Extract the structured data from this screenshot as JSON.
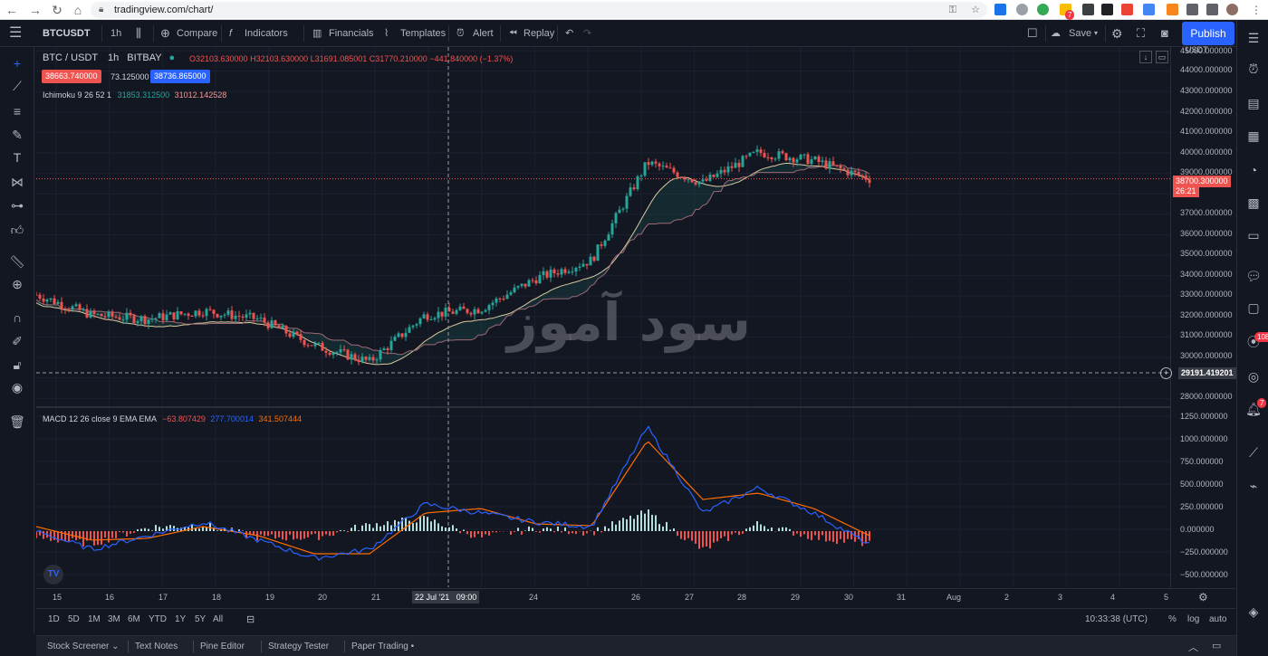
{
  "browser": {
    "url": "tradingview.com/chart/"
  },
  "toolbar": {
    "symbol": "BTCUSDT",
    "interval": "1h",
    "compare": "Compare",
    "indicators": "Indicators",
    "financials": "Financials",
    "templates": "Templates",
    "alert": "Alert",
    "replay": "Replay",
    "save": "Save",
    "publish": "Publish"
  },
  "legend": {
    "title": "BTC / USDT",
    "interval": "1h",
    "exchange": "BITBAY",
    "open": "O32103.630000",
    "high": "H32103.630000",
    "low": "L31691.085001",
    "close": "C31770.210000",
    "change": "−441.840000 (−1.37%)",
    "bid": "38663.740000",
    "spread": "73.125000",
    "ask": "38736.865000",
    "ichimoku_label": "Ichimoku 9 26 52 1",
    "ichimoku_v1": "31853.312500",
    "ichimoku_v2": "31012.142528",
    "macd_label": "MACD 12 26 close 9 EMA EMA",
    "macd_hist": "−63.807429",
    "macd_line": "277.700014",
    "macd_signal": "341.507444"
  },
  "price_axis": {
    "currency": "USDT",
    "labels": [
      "45000.000000",
      "44000.000000",
      "43000.000000",
      "42000.000000",
      "41000.000000",
      "40000.000000",
      "39000.000000",
      "37000.000000",
      "36000.000000",
      "35000.000000",
      "34000.000000",
      "33000.000000",
      "32000.000000",
      "31000.000000",
      "30000.000000",
      "28000.000000"
    ],
    "current_price": "38700.300000",
    "countdown": "26:21",
    "crosshair_price": "29191.419201",
    "macd_labels": [
      "1250.000000",
      "1000.000000",
      "750.000000",
      "500.000000",
      "250.000000",
      "0.000000",
      "−250.000000",
      "−500.000000"
    ]
  },
  "time_axis": {
    "labels": [
      "15",
      "16",
      "17",
      "18",
      "19",
      "20",
      "21",
      "24",
      "26",
      "27",
      "28",
      "29",
      "30",
      "31",
      "Aug",
      "2",
      "3",
      "4",
      "5"
    ],
    "crosshair": "22 Jul '21   09:00"
  },
  "bottom": {
    "ranges": [
      "1D",
      "5D",
      "1M",
      "3M",
      "6M",
      "YTD",
      "1Y",
      "5Y",
      "All"
    ],
    "clock": "10:33:38 (UTC)",
    "percent": "%",
    "log": "log",
    "auto": "auto"
  },
  "footer": {
    "tabs": [
      "Stock Screener",
      "Text Notes",
      "Pine Editor",
      "Strategy Tester",
      "Paper Trading"
    ]
  },
  "watermark": "سود آموز",
  "right_badges": {
    "notifications": "108",
    "alerts": "7",
    "ext_badge": "7"
  },
  "colors": {
    "up": "#26a69a",
    "down": "#ef5350",
    "accent": "#2962ff",
    "macd": "#2962ff",
    "signal": "#ff6d00"
  },
  "chart_data": {
    "type": "candlestick",
    "symbol": "BTC / USDT",
    "ylim": [
      28000,
      45000
    ],
    "x": [
      "15",
      "16",
      "17",
      "18",
      "19",
      "20",
      "21",
      "22",
      "23",
      "24",
      "25",
      "26",
      "27",
      "28",
      "29",
      "30"
    ],
    "close_series": [
      33000,
      32000,
      31800,
      32200,
      31800,
      30500,
      29700,
      32000,
      32300,
      33800,
      34700,
      39500,
      38500,
      40000,
      39600,
      38700
    ],
    "macd_series": [
      0,
      -200,
      -50,
      100,
      -100,
      -300,
      -200,
      300,
      200,
      100,
      50,
      1150,
      200,
      480,
      200,
      -150
    ],
    "signal_series": [
      50,
      -100,
      -80,
      50,
      -50,
      -250,
      -250,
      200,
      250,
      80,
      60,
      1000,
      350,
      420,
      250,
      -50
    ]
  }
}
